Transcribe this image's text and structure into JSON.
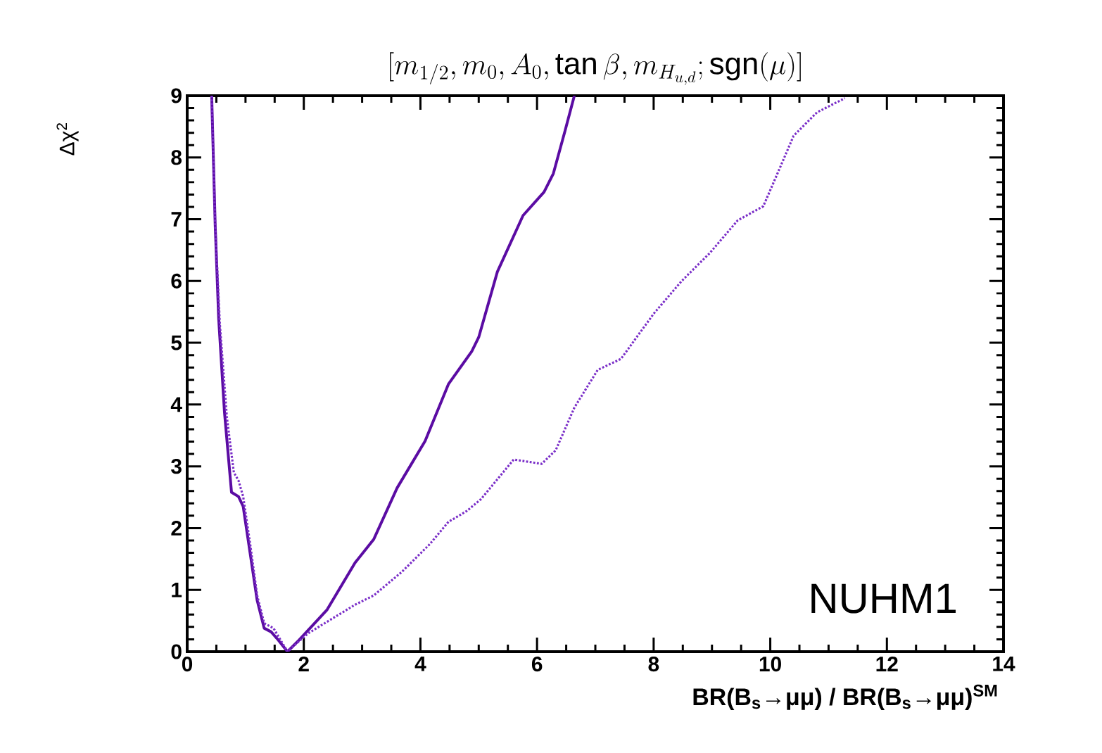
{
  "chart_data": {
    "type": "line",
    "title": "[m_{1/2}, m_0, A_0, \\tan\\beta, m_{H_{u,d}}; \\mathrm{sgn}(\\mu)]",
    "xlabel": "BR(B$_{s}$→μμ) / BR(B$_{s}$→μμ)$^{SM}$",
    "ylabel": "Δχ$^{2}$",
    "annotations": [
      "NUHM1"
    ],
    "xlim": [
      0,
      14
    ],
    "ylim": [
      0,
      9
    ],
    "xticks": [
      0,
      2,
      4,
      6,
      8,
      10,
      12,
      14
    ],
    "yticks": [
      0,
      1,
      2,
      3,
      4,
      5,
      6,
      7,
      8,
      9
    ],
    "marker": "none",
    "series": [
      {
        "color": "#5b0ca3",
        "line_style": "solid",
        "x": [
          0.42,
          0.48,
          0.54,
          0.64,
          0.76,
          0.88,
          0.96,
          1.08,
          1.2,
          1.32,
          1.44,
          1.56,
          1.72,
          1.92,
          2.4,
          2.88,
          3.2,
          3.6,
          4.08,
          4.48,
          4.88,
          5.0,
          5.32,
          5.76,
          6.12,
          6.28,
          6.48,
          6.64
        ],
        "values": [
          9,
          6.91,
          5.39,
          3.87,
          2.58,
          2.51,
          2.35,
          1.59,
          0.83,
          0.38,
          0.32,
          0.19,
          0,
          0.19,
          0.68,
          1.44,
          1.82,
          2.65,
          3.41,
          4.33,
          4.86,
          5.09,
          6.15,
          7.06,
          7.44,
          7.74,
          8.43,
          9
        ]
      },
      {
        "color": "#7a2ec8",
        "line_style": "dotted",
        "x": [
          0.42,
          0.48,
          0.56,
          0.68,
          0.8,
          0.88,
          0.96,
          1.08,
          1.2,
          1.32,
          1.48,
          1.6,
          1.72,
          1.92,
          2.08,
          2.48,
          2.88,
          3.2,
          3.68,
          4.16,
          4.48,
          4.8,
          5.04,
          5.6,
          6.08,
          6.32,
          6.64,
          7.04,
          7.44,
          8.0,
          8.48,
          8.96,
          9.44,
          9.88,
          10.16,
          10.4,
          10.8,
          11.28
        ],
        "values": [
          9,
          6.91,
          5.3,
          3.8,
          2.9,
          2.77,
          2.51,
          1.74,
          0.91,
          0.46,
          0.38,
          0.19,
          0,
          0.17,
          0.3,
          0.53,
          0.76,
          0.91,
          1.29,
          1.74,
          2.1,
          2.28,
          2.47,
          3.11,
          3.04,
          3.26,
          3.95,
          4.56,
          4.74,
          5.47,
          6.0,
          6.45,
          6.98,
          7.21,
          7.82,
          8.35,
          8.73,
          8.96
        ]
      }
    ]
  }
}
